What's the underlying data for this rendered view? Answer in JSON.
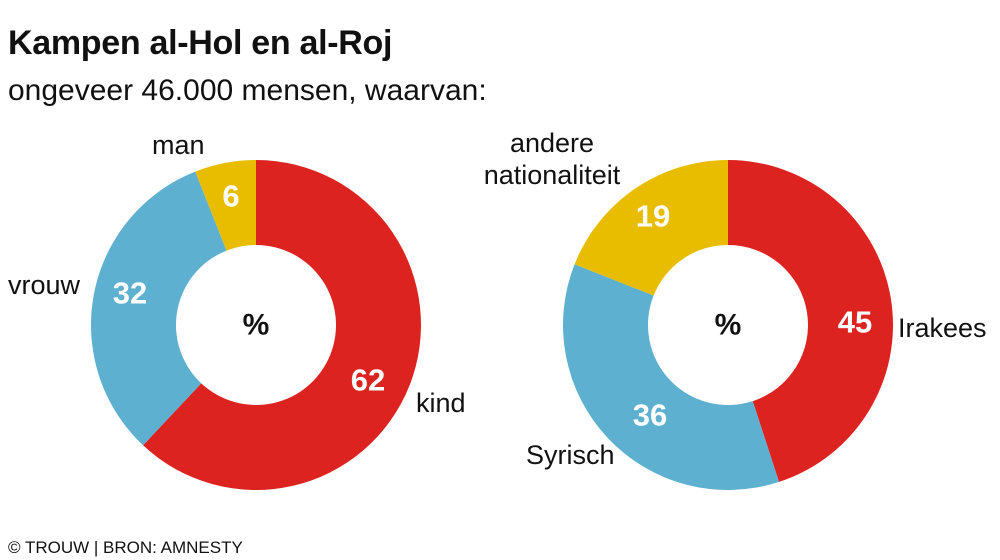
{
  "header": {
    "title": "Kampen al-Hol en al-Roj",
    "subtitle": "ongeveer 46.000 mensen, waarvan:"
  },
  "footer": {
    "source": "© TROUW | BRON: AMNESTY"
  },
  "chart_data": [
    {
      "type": "pie",
      "center_label": "%",
      "categories": [
        "kind",
        "vrouw",
        "man"
      ],
      "values": [
        62,
        32,
        6
      ],
      "colors": [
        "#dc2320",
        "#5db0cf",
        "#e8bd00"
      ]
    },
    {
      "type": "pie",
      "center_label": "%",
      "categories": [
        "Irakees",
        "Syrisch",
        "andere nationaliteit"
      ],
      "category_label_lines": [
        [
          "Irakees"
        ],
        [
          "Syrisch"
        ],
        [
          "andere",
          "nationaliteit"
        ]
      ],
      "values": [
        45,
        36,
        19
      ],
      "colors": [
        "#dc2320",
        "#5db0cf",
        "#e8bd00"
      ]
    }
  ]
}
